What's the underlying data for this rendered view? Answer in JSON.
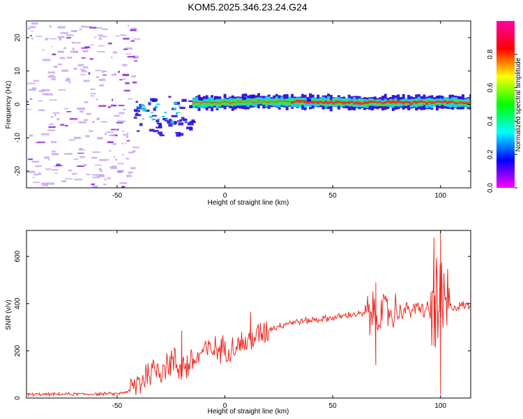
{
  "title": "KOM5.2025.346.23.24.G24",
  "colors": {
    "line": "#ee2a22",
    "frame": "#000000",
    "weak": "#c9a7f2",
    "mid": "#8a22e0",
    "strong": "#2b11d6"
  },
  "chart_data": [
    {
      "type": "heatmap",
      "xlabel": "Height of straight line (km)",
      "ylabel": "Frequency (Hz)",
      "xlim": [
        -92,
        114
      ],
      "ylim": [
        -25,
        25
      ],
      "xticks": [
        -50,
        0,
        50,
        100
      ],
      "yticks": [
        -20,
        -10,
        0,
        10,
        20
      ],
      "colorbar": {
        "label": "Normalized spectral amplitude",
        "range": [
          0,
          1
        ],
        "ticks": [
          "0.0",
          "0.2",
          "0.4",
          "0.6",
          "0.8"
        ],
        "ramp": [
          "#ff00ff",
          "#0000ff",
          "#00ffff",
          "#00ff00",
          "#ffff00",
          "#ff0000",
          "#ff00aa"
        ]
      },
      "ridge": [
        {
          "x": -44,
          "y": -4
        },
        {
          "x": -30,
          "y": -2.5
        },
        {
          "x": -15,
          "y": 0.5
        },
        {
          "x": -5,
          "y": 0.5
        },
        {
          "x": 10,
          "y": 0.8
        },
        {
          "x": 40,
          "y": 0.8
        },
        {
          "x": 60,
          "y": 0.5
        },
        {
          "x": 80,
          "y": 0.5
        },
        {
          "x": 100,
          "y": 0.6
        },
        {
          "x": 114,
          "y": 0.5
        }
      ]
    },
    {
      "type": "line",
      "xlabel": "Height of straight line (km)",
      "ylabel": "SNR (v/v)",
      "xlim": [
        -92,
        114
      ],
      "ylim": [
        0,
        710
      ],
      "xticks": [
        -50,
        0,
        50,
        100
      ],
      "yticks": [
        0,
        200,
        400,
        600
      ],
      "trend": [
        {
          "x": -92,
          "y": 15
        },
        {
          "x": -50,
          "y": 18
        },
        {
          "x": -44,
          "y": 30
        },
        {
          "x": -35,
          "y": 110
        },
        {
          "x": -25,
          "y": 150
        },
        {
          "x": -20,
          "y": 135
        },
        {
          "x": -15,
          "y": 150
        },
        {
          "x": -10,
          "y": 200
        },
        {
          "x": 0,
          "y": 210
        },
        {
          "x": 10,
          "y": 235
        },
        {
          "x": 20,
          "y": 290
        },
        {
          "x": 30,
          "y": 320
        },
        {
          "x": 50,
          "y": 340
        },
        {
          "x": 60,
          "y": 355
        },
        {
          "x": 70,
          "y": 355
        },
        {
          "x": 80,
          "y": 365
        },
        {
          "x": 90,
          "y": 380
        },
        {
          "x": 95,
          "y": 370
        },
        {
          "x": 100,
          "y": 360
        },
        {
          "x": 105,
          "y": 385
        },
        {
          "x": 114,
          "y": 395
        }
      ],
      "peaks": [
        {
          "x": -20,
          "y": 285
        },
        {
          "x": 12,
          "y": 365
        },
        {
          "x": 70,
          "y": 490
        },
        {
          "x": 97,
          "y": 680
        },
        {
          "x": 100,
          "y": 710
        },
        {
          "x": 100,
          "y": 15
        },
        {
          "x": 70,
          "y": 140
        }
      ]
    }
  ]
}
